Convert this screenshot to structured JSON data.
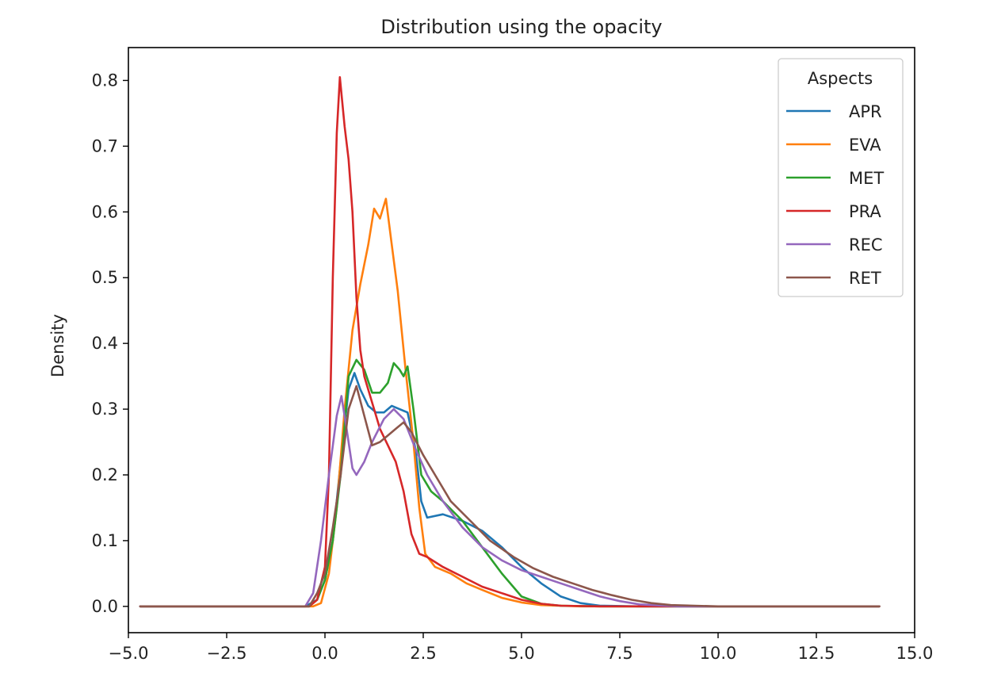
{
  "chart_data": {
    "type": "line",
    "title": "Distribution using the opacity",
    "xlabel": "",
    "ylabel": "Density",
    "xlim": [
      -5.0,
      15.0
    ],
    "ylim": [
      -0.04,
      0.85
    ],
    "xticks": [
      -5.0,
      -2.5,
      0.0,
      2.5,
      5.0,
      7.5,
      10.0,
      12.5,
      15.0
    ],
    "xtick_labels": [
      "−5.0",
      "−2.5",
      "0.0",
      "2.5",
      "5.0",
      "7.5",
      "10.0",
      "12.5",
      "15.0"
    ],
    "yticks": [
      0.0,
      0.1,
      0.2,
      0.3,
      0.4,
      0.5,
      0.6,
      0.7,
      0.8
    ],
    "ytick_labels": [
      "0.0",
      "0.1",
      "0.2",
      "0.3",
      "0.4",
      "0.5",
      "0.6",
      "0.7",
      "0.8"
    ],
    "grid": false,
    "legend": {
      "title": "Aspects",
      "position": "top-right"
    },
    "series": [
      {
        "name": "APR",
        "color": "#1f77b4",
        "points": [
          [
            -4.7,
            0.0
          ],
          [
            -0.5,
            0.0
          ],
          [
            -0.2,
            0.01
          ],
          [
            0.0,
            0.04
          ],
          [
            0.2,
            0.1
          ],
          [
            0.4,
            0.22
          ],
          [
            0.6,
            0.33
          ],
          [
            0.75,
            0.355
          ],
          [
            0.9,
            0.33
          ],
          [
            1.1,
            0.305
          ],
          [
            1.3,
            0.295
          ],
          [
            1.5,
            0.295
          ],
          [
            1.7,
            0.305
          ],
          [
            1.9,
            0.3
          ],
          [
            2.1,
            0.295
          ],
          [
            2.3,
            0.24
          ],
          [
            2.45,
            0.16
          ],
          [
            2.6,
            0.135
          ],
          [
            3.0,
            0.14
          ],
          [
            3.5,
            0.13
          ],
          [
            4.0,
            0.115
          ],
          [
            4.5,
            0.09
          ],
          [
            5.0,
            0.06
          ],
          [
            5.5,
            0.035
          ],
          [
            6.0,
            0.015
          ],
          [
            6.5,
            0.005
          ],
          [
            7.0,
            0.001
          ],
          [
            8.0,
            0.0
          ],
          [
            14.1,
            0.0
          ]
        ]
      },
      {
        "name": "EVA",
        "color": "#ff7f0e",
        "points": [
          [
            -4.7,
            0.0
          ],
          [
            -0.3,
            0.0
          ],
          [
            -0.1,
            0.005
          ],
          [
            0.1,
            0.05
          ],
          [
            0.3,
            0.15
          ],
          [
            0.5,
            0.3
          ],
          [
            0.7,
            0.42
          ],
          [
            0.9,
            0.49
          ],
          [
            1.1,
            0.55
          ],
          [
            1.25,
            0.605
          ],
          [
            1.4,
            0.59
          ],
          [
            1.55,
            0.62
          ],
          [
            1.7,
            0.55
          ],
          [
            1.85,
            0.48
          ],
          [
            2.05,
            0.36
          ],
          [
            2.25,
            0.25
          ],
          [
            2.4,
            0.15
          ],
          [
            2.55,
            0.08
          ],
          [
            2.8,
            0.06
          ],
          [
            3.2,
            0.05
          ],
          [
            3.6,
            0.035
          ],
          [
            4.0,
            0.025
          ],
          [
            4.5,
            0.013
          ],
          [
            5.0,
            0.006
          ],
          [
            5.5,
            0.002
          ],
          [
            6.5,
            0.0
          ],
          [
            14.1,
            0.0
          ]
        ]
      },
      {
        "name": "MET",
        "color": "#2ca02c",
        "points": [
          [
            -4.7,
            0.0
          ],
          [
            -0.4,
            0.0
          ],
          [
            -0.2,
            0.01
          ],
          [
            0.0,
            0.04
          ],
          [
            0.2,
            0.1
          ],
          [
            0.4,
            0.2
          ],
          [
            0.6,
            0.35
          ],
          [
            0.8,
            0.375
          ],
          [
            1.0,
            0.36
          ],
          [
            1.2,
            0.325
          ],
          [
            1.4,
            0.325
          ],
          [
            1.6,
            0.34
          ],
          [
            1.75,
            0.37
          ],
          [
            1.9,
            0.36
          ],
          [
            2.0,
            0.35
          ],
          [
            2.1,
            0.365
          ],
          [
            2.25,
            0.3
          ],
          [
            2.45,
            0.2
          ],
          [
            2.7,
            0.175
          ],
          [
            3.0,
            0.16
          ],
          [
            3.5,
            0.13
          ],
          [
            4.0,
            0.09
          ],
          [
            4.5,
            0.05
          ],
          [
            5.0,
            0.015
          ],
          [
            5.5,
            0.004
          ],
          [
            6.0,
            0.001
          ],
          [
            7.0,
            0.0
          ],
          [
            14.1,
            0.0
          ]
        ]
      },
      {
        "name": "PRA",
        "color": "#d62728",
        "points": [
          [
            -4.7,
            0.0
          ],
          [
            -0.4,
            0.0
          ],
          [
            -0.2,
            0.01
          ],
          [
            0.0,
            0.06
          ],
          [
            0.1,
            0.2
          ],
          [
            0.2,
            0.5
          ],
          [
            0.3,
            0.72
          ],
          [
            0.38,
            0.805
          ],
          [
            0.5,
            0.73
          ],
          [
            0.6,
            0.68
          ],
          [
            0.7,
            0.6
          ],
          [
            0.8,
            0.47
          ],
          [
            0.9,
            0.39
          ],
          [
            1.0,
            0.35
          ],
          [
            1.2,
            0.31
          ],
          [
            1.4,
            0.27
          ],
          [
            1.6,
            0.245
          ],
          [
            1.8,
            0.22
          ],
          [
            2.0,
            0.175
          ],
          [
            2.2,
            0.11
          ],
          [
            2.4,
            0.08
          ],
          [
            2.6,
            0.075
          ],
          [
            3.0,
            0.06
          ],
          [
            3.5,
            0.045
          ],
          [
            4.0,
            0.03
          ],
          [
            4.5,
            0.02
          ],
          [
            5.0,
            0.01
          ],
          [
            5.5,
            0.004
          ],
          [
            6.0,
            0.001
          ],
          [
            7.0,
            0.0
          ],
          [
            14.1,
            0.0
          ]
        ]
      },
      {
        "name": "REC",
        "color": "#9467bd",
        "points": [
          [
            -4.7,
            0.0
          ],
          [
            -0.5,
            0.0
          ],
          [
            -0.3,
            0.02
          ],
          [
            -0.1,
            0.1
          ],
          [
            0.1,
            0.2
          ],
          [
            0.3,
            0.29
          ],
          [
            0.42,
            0.32
          ],
          [
            0.55,
            0.27
          ],
          [
            0.7,
            0.21
          ],
          [
            0.8,
            0.2
          ],
          [
            1.0,
            0.22
          ],
          [
            1.2,
            0.25
          ],
          [
            1.5,
            0.285
          ],
          [
            1.75,
            0.3
          ],
          [
            2.0,
            0.285
          ],
          [
            2.3,
            0.24
          ],
          [
            2.6,
            0.2
          ],
          [
            3.0,
            0.16
          ],
          [
            3.5,
            0.12
          ],
          [
            4.0,
            0.09
          ],
          [
            4.5,
            0.07
          ],
          [
            5.0,
            0.055
          ],
          [
            5.5,
            0.045
          ],
          [
            6.0,
            0.035
          ],
          [
            6.5,
            0.025
          ],
          [
            7.0,
            0.015
          ],
          [
            7.5,
            0.008
          ],
          [
            8.0,
            0.003
          ],
          [
            9.0,
            0.0
          ],
          [
            14.1,
            0.0
          ]
        ]
      },
      {
        "name": "RET",
        "color": "#8c564b",
        "points": [
          [
            -4.7,
            0.0
          ],
          [
            -0.4,
            0.0
          ],
          [
            -0.2,
            0.02
          ],
          [
            0.0,
            0.05
          ],
          [
            0.2,
            0.12
          ],
          [
            0.4,
            0.2
          ],
          [
            0.6,
            0.3
          ],
          [
            0.8,
            0.335
          ],
          [
            1.0,
            0.29
          ],
          [
            1.2,
            0.245
          ],
          [
            1.4,
            0.25
          ],
          [
            1.6,
            0.26
          ],
          [
            1.8,
            0.27
          ],
          [
            2.0,
            0.28
          ],
          [
            2.2,
            0.265
          ],
          [
            2.5,
            0.23
          ],
          [
            2.8,
            0.2
          ],
          [
            3.2,
            0.16
          ],
          [
            3.7,
            0.13
          ],
          [
            4.2,
            0.1
          ],
          [
            4.8,
            0.075
          ],
          [
            5.3,
            0.058
          ],
          [
            5.8,
            0.045
          ],
          [
            6.3,
            0.035
          ],
          [
            6.8,
            0.025
          ],
          [
            7.3,
            0.017
          ],
          [
            7.8,
            0.01
          ],
          [
            8.3,
            0.005
          ],
          [
            8.8,
            0.002
          ],
          [
            10.0,
            0.0
          ],
          [
            14.1,
            0.0
          ]
        ]
      }
    ]
  }
}
